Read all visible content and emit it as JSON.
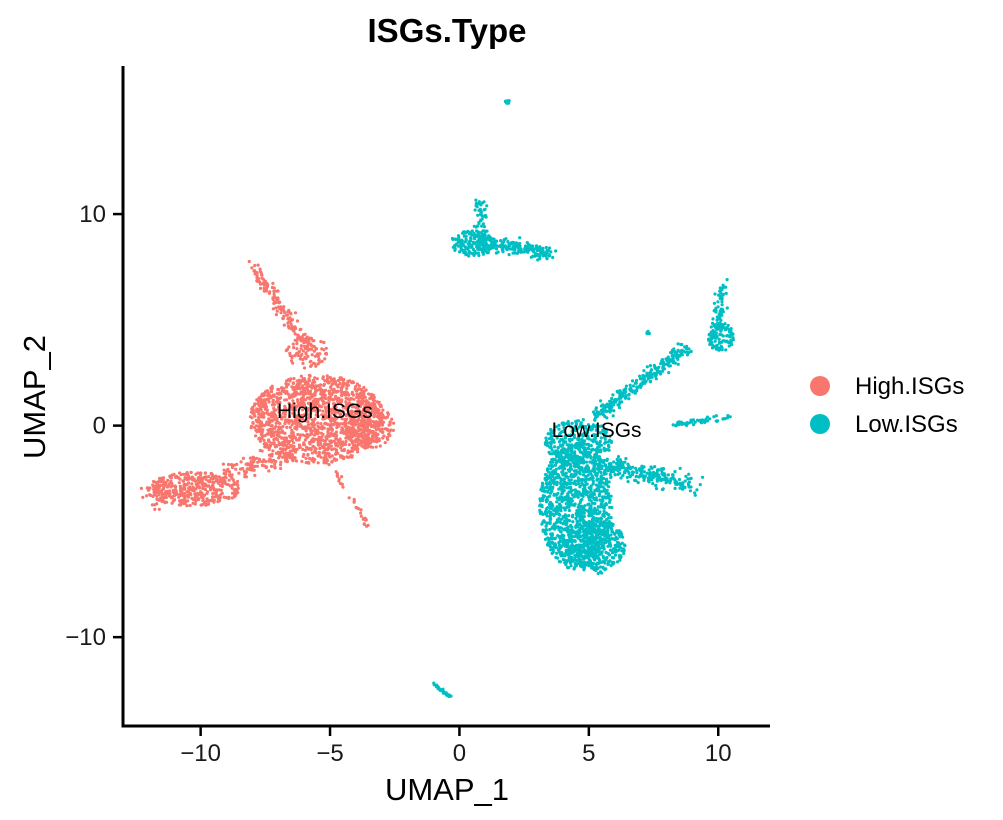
{
  "chart_data": {
    "type": "scatter",
    "title": "ISGs.Type",
    "xlabel": "UMAP_1",
    "ylabel": "UMAP_2",
    "xlim": [
      -13,
      12
    ],
    "ylim": [
      -14.2,
      17
    ],
    "xticks": [
      -10,
      -5,
      0,
      5,
      10
    ],
    "xtick_labels": [
      "−10",
      "−5",
      "0",
      "5",
      "10"
    ],
    "yticks": [
      -10,
      0,
      10
    ],
    "ytick_labels": [
      "−10",
      "0",
      "10"
    ],
    "grid": false,
    "legend_position": "right",
    "series": [
      {
        "name": "High.ISGs",
        "color": "#F8766D",
        "label_at": [
          -5.2,
          0.7
        ],
        "regions": [
          {
            "shape": "ellipse",
            "center": [
              -5.5,
              0.3
            ],
            "radius": [
              2.6,
              2.1
            ],
            "count": 1400
          },
          {
            "shape": "ellipse",
            "center": [
              -3.5,
              0.0
            ],
            "radius": [
              1.0,
              1.1
            ],
            "count": 160
          },
          {
            "shape": "ellipse",
            "center": [
              -10.3,
              -3.0
            ],
            "radius": [
              1.8,
              0.8
            ],
            "count": 300
          },
          {
            "shape": "segment",
            "from": [
              -11.8,
              -3.4
            ],
            "to": [
              -6.5,
              -1.3
            ],
            "spread": 0.5,
            "count": 220
          },
          {
            "shape": "segment",
            "from": [
              -8.0,
              7.5
            ],
            "to": [
              -5.8,
              3.6
            ],
            "spread": 0.25,
            "count": 150
          },
          {
            "shape": "ellipse",
            "center": [
              -5.9,
              3.5
            ],
            "radius": [
              0.8,
              0.8
            ],
            "count": 80
          },
          {
            "shape": "segment",
            "from": [
              -5.0,
              -1.8
            ],
            "to": [
              -3.5,
              -4.8
            ],
            "spread": 0.1,
            "count": 30
          }
        ]
      },
      {
        "name": "Low.ISGs",
        "color": "#00BFC4",
        "label_at": [
          5.3,
          -0.2
        ],
        "regions": [
          {
            "shape": "ellipse",
            "center": [
              0.5,
              8.6
            ],
            "radius": [
              0.9,
              0.6
            ],
            "count": 160
          },
          {
            "shape": "segment",
            "from": [
              0.8,
              10.7
            ],
            "to": [
              0.9,
              8.5
            ],
            "spread": 0.25,
            "count": 70
          },
          {
            "shape": "segment",
            "from": [
              1.0,
              8.6
            ],
            "to": [
              3.5,
              8.2
            ],
            "spread": 0.35,
            "count": 180
          },
          {
            "shape": "ellipse",
            "center": [
              1.85,
              15.3
            ],
            "radius": [
              0.1,
              0.1
            ],
            "count": 10
          },
          {
            "shape": "ellipse",
            "center": [
              4.5,
              -3.8
            ],
            "radius": [
              1.4,
              3.0
            ],
            "count": 1200
          },
          {
            "shape": "ellipse",
            "center": [
              5.3,
              -5.7
            ],
            "radius": [
              1.1,
              1.3
            ],
            "count": 350
          },
          {
            "shape": "ellipse",
            "center": [
              4.6,
              -0.8
            ],
            "radius": [
              1.3,
              1.1
            ],
            "count": 300
          },
          {
            "shape": "segment",
            "from": [
              5.5,
              -1.8
            ],
            "to": [
              9.0,
              -2.8
            ],
            "spread": 0.45,
            "count": 250
          },
          {
            "shape": "segment",
            "from": [
              5.3,
              0.5
            ],
            "to": [
              8.8,
              3.7
            ],
            "spread": 0.3,
            "count": 260
          },
          {
            "shape": "ellipse",
            "center": [
              10.1,
              4.2
            ],
            "radius": [
              0.5,
              0.7
            ],
            "count": 110
          },
          {
            "shape": "segment",
            "from": [
              10.2,
              6.8
            ],
            "to": [
              10.0,
              4.6
            ],
            "spread": 0.2,
            "count": 60
          },
          {
            "shape": "segment",
            "from": [
              8.2,
              0.0
            ],
            "to": [
              10.4,
              0.4
            ],
            "spread": 0.15,
            "count": 45
          },
          {
            "shape": "ellipse",
            "center": [
              7.3,
              4.4
            ],
            "radius": [
              0.08,
              0.08
            ],
            "count": 6
          },
          {
            "shape": "segment",
            "from": [
              -1.0,
              -12.2
            ],
            "to": [
              -0.4,
              -12.8
            ],
            "spread": 0.05,
            "count": 30
          }
        ]
      }
    ]
  }
}
